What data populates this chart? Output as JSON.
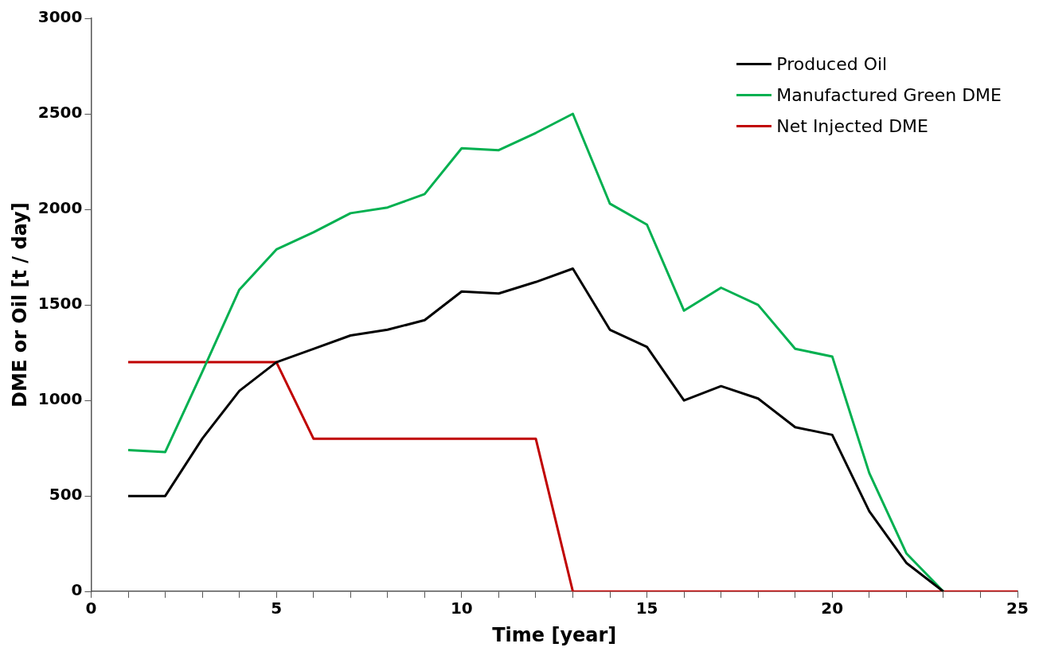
{
  "chart_data": {
    "type": "line",
    "xlabel": "Time [year]",
    "ylabel": "DME or Oil [t / day]",
    "x": [
      1,
      2,
      3,
      4,
      5,
      6,
      7,
      8,
      9,
      10,
      11,
      12,
      13,
      14,
      15,
      16,
      17,
      18,
      19,
      20,
      21,
      22,
      23,
      24,
      25
    ],
    "series": [
      {
        "name": "Produced Oil",
        "color": "#000000",
        "x": [
          1,
          2,
          3,
          4,
          5,
          6,
          7,
          8,
          9,
          10,
          11,
          12,
          13,
          14,
          15,
          16,
          17,
          18,
          19,
          20,
          21,
          22,
          23
        ],
        "values": [
          500,
          500,
          800,
          1050,
          1200,
          1270,
          1340,
          1370,
          1420,
          1570,
          1560,
          1620,
          1690,
          1370,
          1280,
          1000,
          1075,
          1010,
          860,
          820,
          420,
          150,
          0
        ]
      },
      {
        "name": "Manufactured Green DME",
        "color": "#00b050",
        "x": [
          1,
          2,
          3,
          4,
          5,
          6,
          7,
          8,
          9,
          10,
          11,
          12,
          13,
          14,
          15,
          16,
          17,
          18,
          19,
          20,
          21,
          22,
          23
        ],
        "values": [
          740,
          730,
          1150,
          1580,
          1790,
          1880,
          1980,
          2010,
          2080,
          2320,
          2310,
          2400,
          2500,
          2030,
          1920,
          1470,
          1590,
          1500,
          1270,
          1230,
          620,
          200,
          0
        ]
      },
      {
        "name": "Net Injected DME",
        "color": "#c00000",
        "type": "line",
        "values": [
          1200,
          1200,
          1200,
          1200,
          1200,
          800,
          800,
          800,
          800,
          800,
          800,
          800,
          0,
          0,
          0,
          0,
          0,
          0,
          0,
          0,
          0,
          0,
          0,
          0,
          0
        ]
      }
    ],
    "xlim": [
      0,
      25
    ],
    "xticks": [
      0,
      {
        "value": 1,
        "label": null
      },
      {
        "value": 2,
        "label": null
      },
      {
        "value": 3,
        "label": null
      },
      {
        "value": 4,
        "label": null
      },
      5,
      {
        "value": 6,
        "label": null
      },
      {
        "value": 7,
        "label": null
      },
      {
        "value": 8,
        "label": null
      },
      {
        "value": 9,
        "label": null
      },
      10,
      {
        "value": 11,
        "label": null
      },
      {
        "value": 12,
        "label": null
      },
      {
        "value": 13,
        "label": null
      },
      {
        "value": 14,
        "label": null
      },
      15,
      {
        "value": 16,
        "label": null
      },
      {
        "value": 17,
        "label": null
      },
      {
        "value": 18,
        "label": null
      },
      {
        "value": 19,
        "label": null
      },
      20,
      {
        "value": 21,
        "label": null
      },
      {
        "value": 22,
        "label": null
      },
      {
        "value": 23,
        "label": null
      },
      {
        "value": 24,
        "label": null
      },
      25
    ],
    "ylim": [
      0,
      3000
    ],
    "yticks": [
      0,
      500,
      1000,
      1500,
      2000,
      2500,
      3000
    ],
    "grid": false,
    "legend": "top right"
  }
}
